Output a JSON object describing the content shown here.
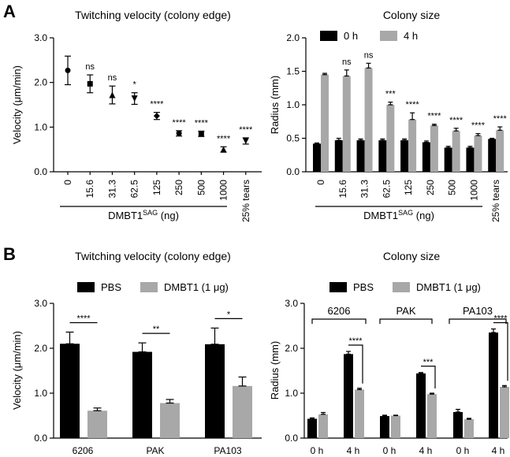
{
  "panels": [
    {
      "id": "A",
      "letter": "A"
    },
    {
      "id": "B",
      "letter": "B"
    }
  ],
  "chart_data": [
    {
      "panel": "A",
      "type": "scatter",
      "title": "Twitching velocity (colony edge)",
      "ylabel": "Velocity (μm/min)",
      "ylim": [
        0,
        3
      ],
      "yticks": [
        "0.0",
        "1.0",
        "2.0",
        "3.0"
      ],
      "categories": [
        "0",
        "15.6",
        "31.3",
        "62.5",
        "125",
        "250",
        "500",
        "1000",
        "25% tears"
      ],
      "group_label": {
        "prefix": "DMBT1",
        "superscript": "SAG",
        "suffix": " (ng)",
        "span_count": 8
      },
      "series": [
        {
          "values": [
            2.27,
            1.97,
            1.72,
            1.64,
            1.25,
            0.86,
            0.85,
            0.5,
            0.69
          ],
          "errors": [
            0.32,
            0.2,
            0.2,
            0.13,
            0.08,
            0.06,
            0.06,
            0.06,
            0.07
          ],
          "markers": [
            "circle",
            "square",
            "triangle",
            "triangle-down",
            "diamond",
            "circle",
            "square",
            "triangle",
            "triangle-down"
          ],
          "color": "#000000"
        }
      ],
      "significance": [
        "",
        "ns",
        "ns",
        "*",
        "****",
        "****",
        "****",
        "****",
        "****"
      ]
    },
    {
      "panel": "A",
      "type": "bar",
      "title": "Colony size",
      "ylabel": "Radius (mm)",
      "ylim": [
        0,
        2.0
      ],
      "yticks": [
        "0.0",
        "0.5",
        "1.0",
        "1.5",
        "2.0"
      ],
      "categories": [
        "0",
        "15.6",
        "31.3",
        "62.5",
        "125",
        "250",
        "500",
        "1000",
        "25% tears"
      ],
      "group_label": {
        "prefix": "DMBT1",
        "superscript": "SAG",
        "suffix": " (ng)",
        "span_count": 8
      },
      "legend_position": "top",
      "series": [
        {
          "name": "0 h",
          "color": "#000000",
          "values": [
            0.42,
            0.47,
            0.47,
            0.47,
            0.47,
            0.44,
            0.36,
            0.36,
            0.49
          ],
          "errors": [
            0.01,
            0.03,
            0.02,
            0.02,
            0.02,
            0.02,
            0.02,
            0.02,
            0.01
          ]
        },
        {
          "name": "4 h",
          "color": "#a8a8a8",
          "values": [
            1.45,
            1.43,
            1.55,
            1.0,
            0.78,
            0.69,
            0.61,
            0.54,
            0.62
          ],
          "errors": [
            0.02,
            0.09,
            0.07,
            0.04,
            0.1,
            0.02,
            0.04,
            0.03,
            0.05
          ]
        }
      ],
      "significance": [
        "",
        "ns",
        "ns",
        "***",
        "****",
        "****",
        "****",
        "****",
        "****"
      ]
    },
    {
      "panel": "B",
      "type": "bar",
      "title": "Twitching velocity (colony edge)",
      "ylabel": "Velocity (μm/min)",
      "ylim": [
        0,
        3
      ],
      "yticks": [
        "0.0",
        "1.0",
        "2.0",
        "3.0"
      ],
      "categories": [
        "6206",
        "PAK",
        "PA103"
      ],
      "legend_position": "top",
      "series": [
        {
          "name": "PBS",
          "color": "#000000",
          "values": [
            2.1,
            1.92,
            2.09
          ],
          "errors": [
            0.26,
            0.2,
            0.36
          ]
        },
        {
          "name": "DMBT1 (1 μg)",
          "color": "#a8a8a8",
          "values": [
            0.61,
            0.78,
            1.16
          ],
          "errors": [
            0.06,
            0.08,
            0.2
          ]
        }
      ],
      "significance": [
        "****",
        "**",
        "*"
      ]
    },
    {
      "panel": "B",
      "type": "bar",
      "title": "Colony size",
      "ylabel": "Radius (mm)",
      "ylim": [
        0,
        3
      ],
      "yticks": [
        "0.0",
        "1.0",
        "2.0",
        "3.0"
      ],
      "categories": [
        "0 h",
        "4 h",
        "0 h",
        "4 h",
        "0 h",
        "4 h"
      ],
      "strain_groups": [
        "6206",
        "PAK",
        "PA103"
      ],
      "legend_position": "top",
      "series": [
        {
          "name": "PBS",
          "color": "#000000",
          "values": [
            0.43,
            1.87,
            0.49,
            1.44,
            0.58,
            2.35
          ],
          "errors": [
            0.02,
            0.06,
            0.02,
            0.02,
            0.06,
            0.08
          ]
        },
        {
          "name": "DMBT1 (1 μg)",
          "color": "#a8a8a8",
          "values": [
            0.53,
            1.08,
            0.5,
            0.98,
            0.42,
            1.14
          ],
          "errors": [
            0.04,
            0.03,
            0.01,
            0.02,
            0.02,
            0.03
          ]
        }
      ],
      "significance": [
        "",
        "****",
        "",
        "***",
        "",
        "****"
      ]
    }
  ]
}
